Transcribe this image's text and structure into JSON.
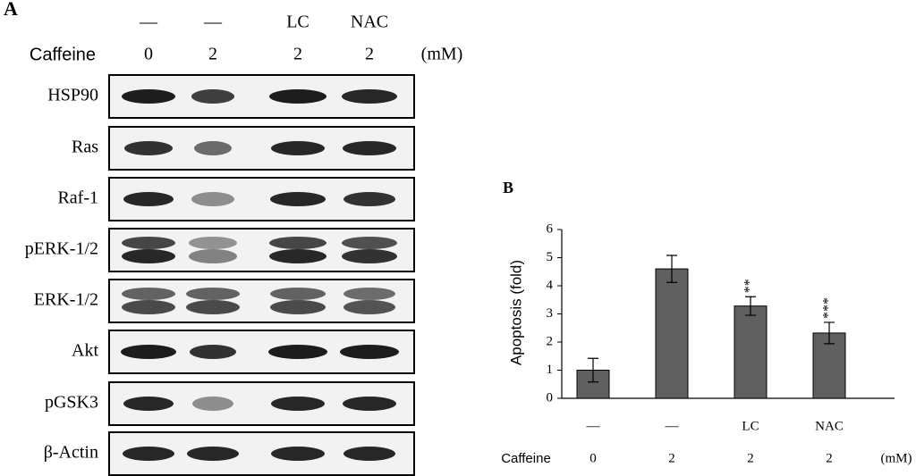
{
  "panel_a": {
    "label": "A",
    "treatments": [
      "—",
      "—",
      "LC",
      "NAC"
    ],
    "dose_title": "Caffeine",
    "doses": [
      "0",
      "2",
      "2",
      "2"
    ],
    "dose_unit": "(mM)",
    "rows": [
      "HSP90",
      "Ras",
      "Raf-1",
      "pERK-1/2",
      "ERK-1/2",
      "Akt",
      "pGSK3",
      "β-Actin"
    ]
  },
  "chart_data": {
    "type": "bar",
    "label": "B",
    "y_label": "Apoptosis (fold)",
    "categories": [
      "—",
      "—",
      "LC",
      "NAC"
    ],
    "dose_title": "Caffeine",
    "doses": [
      "0",
      "2",
      "2",
      "2"
    ],
    "dose_unit": "(mM)",
    "values": [
      1.0,
      4.6,
      3.28,
      2.32
    ],
    "errors": [
      0.42,
      0.48,
      0.33,
      0.38
    ],
    "significance": [
      null,
      null,
      "**",
      "***"
    ],
    "color": "#606060",
    "ylim": [
      0,
      6
    ],
    "yticks": [
      0,
      1,
      2,
      3,
      4,
      5,
      6
    ]
  }
}
